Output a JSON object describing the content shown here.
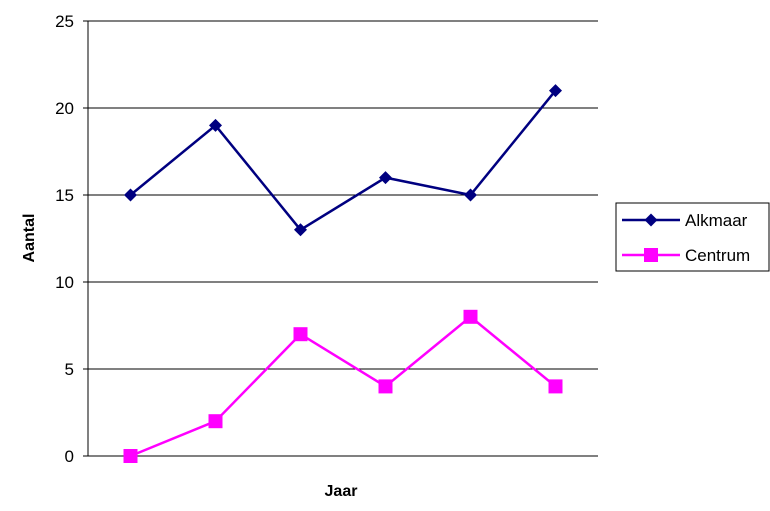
{
  "chart_data": {
    "type": "line",
    "title": "",
    "xlabel": "Jaar",
    "ylabel": "Aantal",
    "ylim": [
      0,
      25
    ],
    "yticks": [
      0,
      5,
      10,
      15,
      20,
      25
    ],
    "x": [
      1,
      2,
      3,
      4,
      5,
      6
    ],
    "grid": "horizontal",
    "legend_position": "right",
    "series": [
      {
        "name": "Alkmaar",
        "values": [
          15,
          19,
          13,
          16,
          15,
          21
        ],
        "color": "#000080",
        "marker": "diamond"
      },
      {
        "name": "Centrum",
        "values": [
          0,
          2,
          7,
          4,
          8,
          4
        ],
        "color": "#ff00ff",
        "marker": "square"
      }
    ]
  }
}
